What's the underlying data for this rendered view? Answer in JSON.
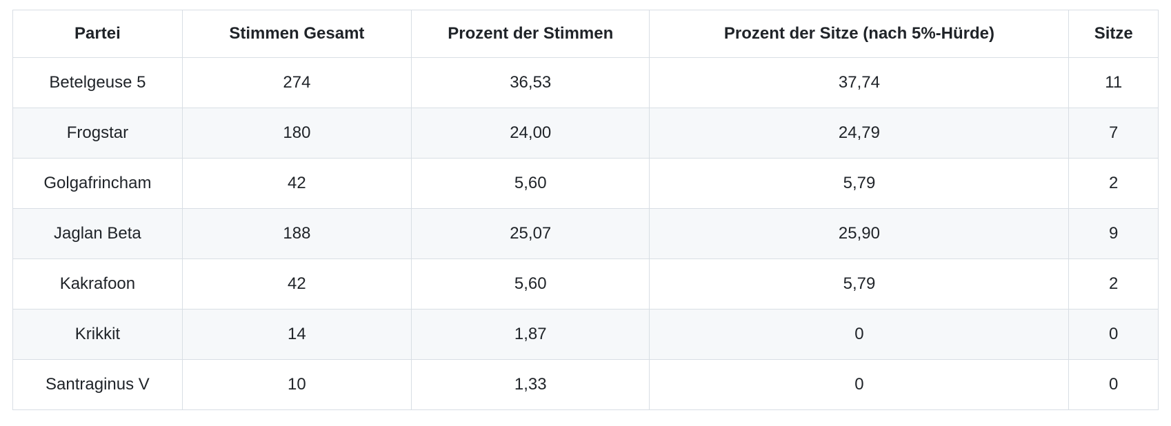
{
  "table": {
    "headers": [
      "Partei",
      "Stimmen Gesamt",
      "Prozent der Stimmen",
      "Prozent der Sitze (nach 5%-Hürde)",
      "Sitze"
    ],
    "rows": [
      [
        "Betelgeuse 5",
        "274",
        "36,53",
        "37,74",
        "11"
      ],
      [
        "Frogstar",
        "180",
        "24,00",
        "24,79",
        "7"
      ],
      [
        "Golgafrincham",
        "42",
        "5,60",
        "5,79",
        "2"
      ],
      [
        "Jaglan Beta",
        "188",
        "25,07",
        "25,90",
        "9"
      ],
      [
        "Kakrafoon",
        "42",
        "5,60",
        "5,79",
        "2"
      ],
      [
        "Krikkit",
        "14",
        "1,87",
        "0",
        "0"
      ],
      [
        "Santraginus V",
        "10",
        "1,33",
        "0",
        "0"
      ]
    ]
  },
  "chart_data": {
    "type": "table",
    "title": "",
    "columns": [
      "Partei",
      "Stimmen Gesamt",
      "Prozent der Stimmen",
      "Prozent der Sitze (nach 5%-Hürde)",
      "Sitze"
    ],
    "series": [
      {
        "name": "Stimmen Gesamt",
        "categories": [
          "Betelgeuse 5",
          "Frogstar",
          "Golgafrincham",
          "Jaglan Beta",
          "Kakrafoon",
          "Krikkit",
          "Santraginus V"
        ],
        "values": [
          274,
          180,
          42,
          188,
          42,
          14,
          10
        ]
      },
      {
        "name": "Prozent der Stimmen",
        "values": [
          36.53,
          24.0,
          5.6,
          25.07,
          5.6,
          1.87,
          1.33
        ]
      },
      {
        "name": "Prozent der Sitze (nach 5%-Hürde)",
        "values": [
          37.74,
          24.79,
          5.79,
          25.9,
          5.79,
          0,
          0
        ]
      },
      {
        "name": "Sitze",
        "values": [
          11,
          7,
          2,
          9,
          2,
          0,
          0
        ]
      }
    ]
  },
  "colors": {
    "text": "#1f2328",
    "border": "#d8dee4",
    "row_stripe": "#f6f8fa",
    "background": "#ffffff"
  }
}
